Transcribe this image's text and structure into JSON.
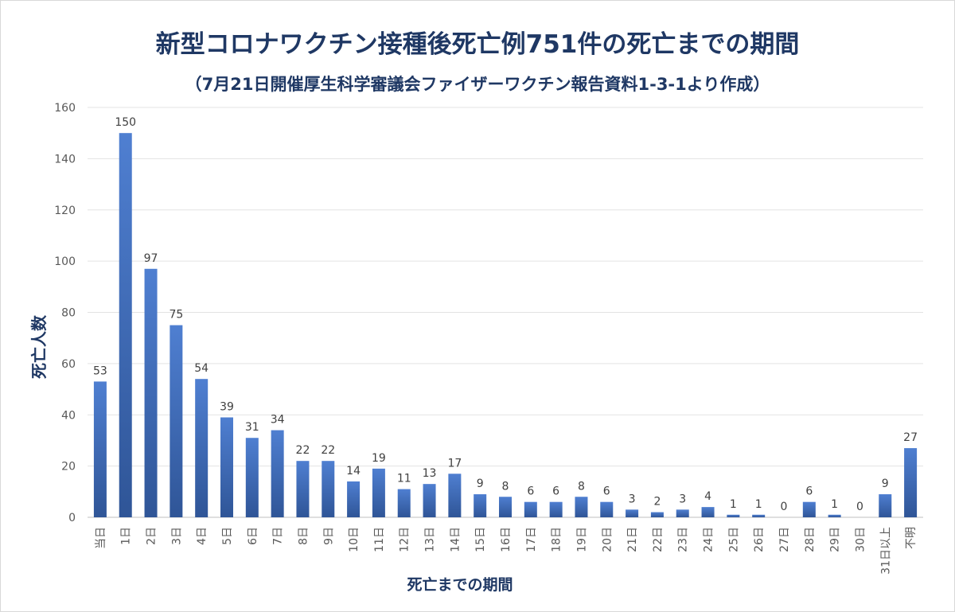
{
  "chart_data": {
    "type": "bar",
    "title": "新型コロナワクチン接種後死亡例751件の死亡までの期間",
    "subtitle": "（7月21日開催厚生科学審議会ファイザーワクチン報告資料1-3-1より作成）",
    "xlabel": "死亡までの期間",
    "ylabel": "死亡人数",
    "ylim": [
      0,
      160
    ],
    "yticks": [
      "0",
      "20",
      "40",
      "60",
      "80",
      "100",
      "120",
      "140",
      "160"
    ],
    "grid": true,
    "legend": "none",
    "bar_color": "#4472c4",
    "categories": [
      "当日",
      "1日",
      "2日",
      "3日",
      "4日",
      "5日",
      "6日",
      "7日",
      "8日",
      "9日",
      "10日",
      "11日",
      "12日",
      "13日",
      "14日",
      "15日",
      "16日",
      "17日",
      "18日",
      "19日",
      "20日",
      "21日",
      "22日",
      "23日",
      "24日",
      "25日",
      "26日",
      "27日",
      "28日",
      "29日",
      "30日",
      "31日以上",
      "不明"
    ],
    "values": [
      53,
      150,
      97,
      75,
      54,
      39,
      31,
      34,
      22,
      22,
      14,
      19,
      11,
      13,
      17,
      9,
      8,
      6,
      6,
      8,
      6,
      3,
      2,
      3,
      4,
      1,
      1,
      0,
      6,
      1,
      0,
      9,
      27
    ]
  }
}
